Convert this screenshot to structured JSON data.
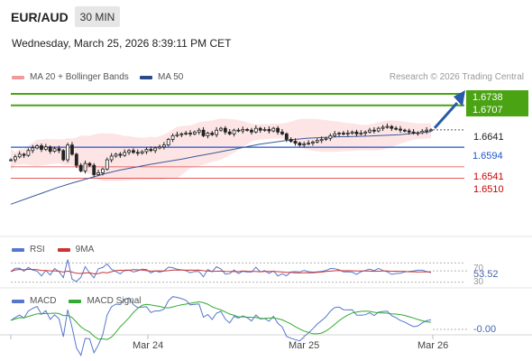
{
  "header": {
    "symbol": "EUR/AUD",
    "timeframe": "30 MIN",
    "datetime": "Wednesday, March 25, 2026 8:39:11 PM CET"
  },
  "legend": {
    "bollinger": "MA 20 + Bollinger Bands",
    "ma50": "MA 50",
    "credit": "Research © 2026 Trading Central"
  },
  "rsi": {
    "label": "RSI",
    "ma_label": "9MA",
    "value": "53.52",
    "tick_70": "70",
    "tick_30": "30"
  },
  "macd": {
    "label": "MACD",
    "signal_label": "MACD Signal",
    "value": "-0.00"
  },
  "x_labels": [
    "Mar 24",
    "Mar 25",
    "Mar 26"
  ],
  "colors": {
    "green": "#4aa312",
    "blue": "#2255cc",
    "red": "#dd4444",
    "band": "#fde1e1",
    "ma50": "#3a5a9a",
    "arrow": "#2a5aa8",
    "rsi": "#5577cc",
    "rsi_ma": "#cc3333",
    "macd": "#5577cc",
    "macd_signal": "#33aa33"
  },
  "chart_data": {
    "type": "line",
    "title": "EUR/AUD",
    "ylim": [
      1.637,
      1.676
    ],
    "levels": {
      "resistance_2": "1.6738",
      "resistance_1": "1.6707",
      "last": "1.6641",
      "pivot": "1.6594",
      "support_1": "1.6541",
      "support_2": "1.6510"
    },
    "candles_approx": {
      "note_series": "close",
      "x_labels": [
        "Mar 24",
        "Mar 25",
        "Mar 26"
      ],
      "close": [
        1.656,
        1.6568,
        1.6575,
        1.6572,
        1.6585,
        1.6592,
        1.6598,
        1.6588,
        1.6595,
        1.6583,
        1.659,
        1.6585,
        1.656,
        1.66,
        1.6575,
        1.6545,
        1.653,
        1.655,
        1.6545,
        1.652,
        1.6525,
        1.6535,
        1.656,
        1.657,
        1.6575,
        1.6572,
        1.658,
        1.6585,
        1.658,
        1.6578,
        1.6582,
        1.6588,
        1.6585,
        1.6592,
        1.6595,
        1.66,
        1.6615,
        1.6625,
        1.6628,
        1.663,
        1.6632,
        1.663,
        1.6635,
        1.664,
        1.6625,
        1.6632,
        1.6628,
        1.664,
        1.6645,
        1.6635,
        1.663,
        1.664,
        1.6638,
        1.6642,
        1.664,
        1.6635,
        1.6645,
        1.664,
        1.6642,
        1.6638,
        1.6645,
        1.6635,
        1.663,
        1.6615,
        1.661,
        1.6605,
        1.66,
        1.6603,
        1.6605,
        1.6608,
        1.6612,
        1.6615,
        1.6618,
        1.6625,
        1.663,
        1.6632,
        1.663,
        1.6632,
        1.6635,
        1.663,
        1.6632,
        1.6635,
        1.664,
        1.6638,
        1.6645,
        1.6648,
        1.665,
        1.6645,
        1.6643,
        1.664,
        1.6638,
        1.6635,
        1.6632,
        1.6633,
        1.6637,
        1.664,
        1.6641
      ]
    },
    "ma50_approx": [
      1.644,
      1.6455,
      1.647,
      1.6485,
      1.6498,
      1.651,
      1.6522,
      1.6532,
      1.654,
      1.6548,
      1.6555,
      1.6562,
      1.657,
      1.6578,
      1.6586,
      1.6594,
      1.6602,
      1.6608,
      1.6614,
      1.6618,
      1.662,
      1.6622,
      1.6623,
      1.6624,
      1.6626,
      1.6628,
      1.6632,
      1.6636
    ],
    "rsi": {
      "last": 53.52,
      "levels": [
        70,
        30
      ]
    },
    "macd": {
      "last": -0.0
    }
  }
}
